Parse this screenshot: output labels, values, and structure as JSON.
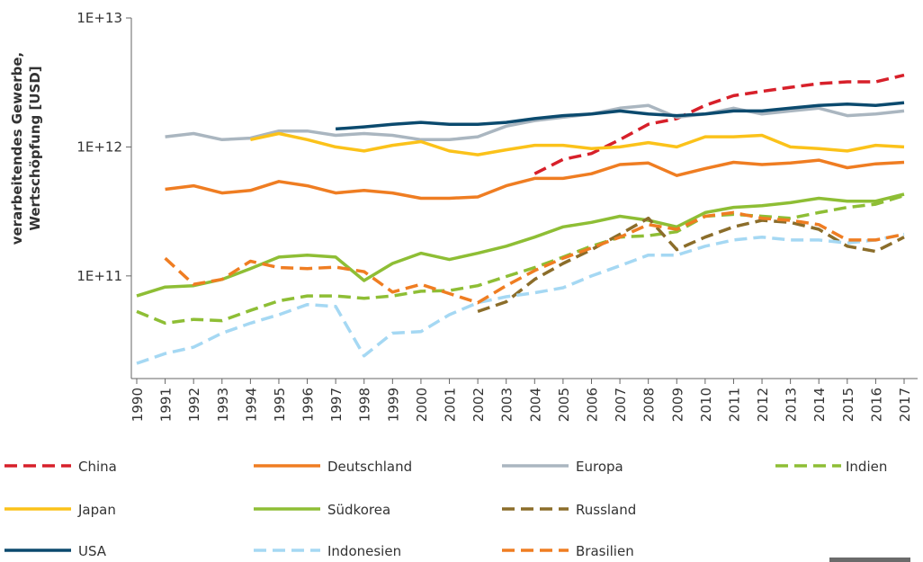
{
  "chart_data": {
    "type": "line",
    "ylabel": [
      "verarbeitendes Gewerbe,",
      "Wertschöpfung [USD]"
    ],
    "x": [
      1990,
      1991,
      1992,
      1993,
      1994,
      1995,
      1996,
      1997,
      1998,
      1999,
      2000,
      2001,
      2002,
      2003,
      2004,
      2005,
      2006,
      2007,
      2008,
      2009,
      2010,
      2011,
      2012,
      2013,
      2014,
      2015,
      2016,
      2017
    ],
    "xlim": [
      1990,
      2017
    ],
    "log_y": true,
    "ylim": [
      16000000000,
      10000000000000
    ],
    "yticks": [
      {
        "value": 100000000000,
        "label": "1E+11"
      },
      {
        "value": 1000000000000,
        "label": "1E+12"
      },
      {
        "value": 10000000000000,
        "label": "1E+13"
      }
    ],
    "grid": false,
    "legend": "bottom",
    "series": [
      {
        "name": "China",
        "color": "#d7202a",
        "style": "dashed",
        "values": [
          null,
          null,
          null,
          null,
          null,
          null,
          null,
          null,
          null,
          null,
          null,
          null,
          null,
          null,
          620000000000.0,
          800000000000.0,
          890000000000.0,
          1140000000000.0,
          1500000000000.0,
          1660000000000.0,
          2100000000000.0,
          2500000000000.0,
          2700000000000.0,
          2900000000000.0,
          3100000000000.0,
          3200000000000.0,
          3200000000000.0,
          3600000000000.0
        ]
      },
      {
        "name": "Deutschland",
        "color": "#ef7d22",
        "style": "solid",
        "values": [
          null,
          470000000000.0,
          500000000000.0,
          440000000000.0,
          460000000000.0,
          540000000000.0,
          500000000000.0,
          440000000000.0,
          460000000000.0,
          440000000000.0,
          400000000000.0,
          400000000000.0,
          410000000000.0,
          500000000000.0,
          570000000000.0,
          570000000000.0,
          620000000000.0,
          730000000000.0,
          750000000000.0,
          600000000000.0,
          680000000000.0,
          760000000000.0,
          730000000000.0,
          750000000000.0,
          790000000000.0,
          690000000000.0,
          740000000000.0,
          760000000000.0
        ]
      },
      {
        "name": "Europa",
        "color": "#aab6c0",
        "style": "solid",
        "values": [
          null,
          1200000000000.0,
          1270000000000.0,
          1140000000000.0,
          1170000000000.0,
          1330000000000.0,
          1330000000000.0,
          1230000000000.0,
          1270000000000.0,
          1230000000000.0,
          1140000000000.0,
          1140000000000.0,
          1200000000000.0,
          1450000000000.0,
          1600000000000.0,
          1700000000000.0,
          1800000000000.0,
          2000000000000.0,
          2100000000000.0,
          1700000000000.0,
          1800000000000.0,
          2000000000000.0,
          1800000000000.0,
          1900000000000.0,
          2000000000000.0,
          1750000000000.0,
          1800000000000.0,
          1900000000000.0
        ]
      },
      {
        "name": "Indien",
        "color": "#8ebe35",
        "style": "dashed",
        "values": [
          53000000000.0,
          43000000000.0,
          46000000000.0,
          45000000000.0,
          54000000000.0,
          64000000000.0,
          70000000000.0,
          70000000000.0,
          67000000000.0,
          70000000000.0,
          76000000000.0,
          77000000000.0,
          84000000000.0,
          99000000000.0,
          116000000000.0,
          140000000000.0,
          170000000000.0,
          200000000000.0,
          205000000000.0,
          220000000000.0,
          290000000000.0,
          300000000000.0,
          290000000000.0,
          280000000000.0,
          310000000000.0,
          340000000000.0,
          360000000000.0,
          420000000000.0
        ]
      },
      {
        "name": "Japan",
        "color": "#fbc21a",
        "style": "solid",
        "values": [
          null,
          null,
          null,
          null,
          1140000000000.0,
          1270000000000.0,
          1140000000000.0,
          1000000000000.0,
          930000000000.0,
          1030000000000.0,
          1100000000000.0,
          930000000000.0,
          870000000000.0,
          950000000000.0,
          1030000000000.0,
          1030000000000.0,
          970000000000.0,
          1000000000000.0,
          1080000000000.0,
          1000000000000.0,
          1200000000000.0,
          1200000000000.0,
          1230000000000.0,
          1000000000000.0,
          970000000000.0,
          930000000000.0,
          1030000000000.0,
          1000000000000.0
        ]
      },
      {
        "name": "Südkorea",
        "color": "#8ebe35",
        "style": "solid",
        "values": [
          70000000000.0,
          82000000000.0,
          84000000000.0,
          94000000000.0,
          114000000000.0,
          140000000000.0,
          145000000000.0,
          140000000000.0,
          92000000000.0,
          125000000000.0,
          150000000000.0,
          134000000000.0,
          150000000000.0,
          170000000000.0,
          200000000000.0,
          240000000000.0,
          260000000000.0,
          290000000000.0,
          270000000000.0,
          240000000000.0,
          310000000000.0,
          340000000000.0,
          350000000000.0,
          370000000000.0,
          400000000000.0,
          380000000000.0,
          380000000000.0,
          430000000000.0
        ]
      },
      {
        "name": "Russland",
        "color": "#8b6d2a",
        "style": "dashed",
        "values": [
          null,
          null,
          null,
          null,
          null,
          null,
          null,
          null,
          null,
          null,
          null,
          null,
          53000000000.0,
          63000000000.0,
          94000000000.0,
          125000000000.0,
          160000000000.0,
          210000000000.0,
          280000000000.0,
          160000000000.0,
          200000000000.0,
          240000000000.0,
          270000000000.0,
          260000000000.0,
          230000000000.0,
          170000000000.0,
          155000000000.0,
          200000000000.0
        ]
      },
      {
        "name": "USA",
        "color": "#0b4a6e",
        "style": "solid",
        "values": [
          null,
          null,
          null,
          null,
          null,
          null,
          null,
          1380000000000.0,
          1430000000000.0,
          1500000000000.0,
          1550000000000.0,
          1500000000000.0,
          1500000000000.0,
          1550000000000.0,
          1660000000000.0,
          1750000000000.0,
          1800000000000.0,
          1900000000000.0,
          1800000000000.0,
          1750000000000.0,
          1800000000000.0,
          1900000000000.0,
          1900000000000.0,
          2000000000000.0,
          2100000000000.0,
          2150000000000.0,
          2100000000000.0,
          2200000000000.0
        ]
      },
      {
        "name": "Indonesien",
        "color": "#a5d8f3",
        "style": "dashed",
        "values": [
          21000000000.0,
          25000000000.0,
          28000000000.0,
          36000000000.0,
          43000000000.0,
          50000000000.0,
          60000000000.0,
          58000000000.0,
          24000000000.0,
          36000000000.0,
          37000000000.0,
          50000000000.0,
          62000000000.0,
          69000000000.0,
          74000000000.0,
          81000000000.0,
          100000000000.0,
          120000000000.0,
          145000000000.0,
          145000000000.0,
          170000000000.0,
          190000000000.0,
          200000000000.0,
          190000000000.0,
          190000000000.0,
          180000000000.0,
          190000000000.0,
          210000000000.0
        ]
      },
      {
        "name": "Brasilien",
        "color": "#ef7d22",
        "style": "dashed",
        "values": [
          null,
          137000000000.0,
          86000000000.0,
          94000000000.0,
          130000000000.0,
          116000000000.0,
          114000000000.0,
          117000000000.0,
          108000000000.0,
          75000000000.0,
          86000000000.0,
          73000000000.0,
          62000000000.0,
          84000000000.0,
          110000000000.0,
          137000000000.0,
          165000000000.0,
          200000000000.0,
          250000000000.0,
          230000000000.0,
          290000000000.0,
          310000000000.0,
          280000000000.0,
          270000000000.0,
          250000000000.0,
          190000000000.0,
          190000000000.0,
          210000000000.0
        ]
      }
    ]
  }
}
